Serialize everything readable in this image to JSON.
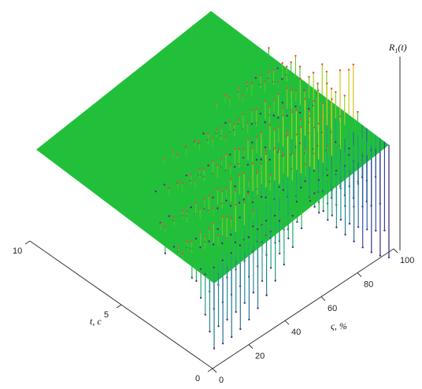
{
  "chart_data": {
    "type": "surface",
    "title": "",
    "zlabel": "R1(t)",
    "zlabel_main": "R",
    "zlabel_sub": "1",
    "zlabel_paren": "(t)",
    "tlabel": "t, c",
    "slabel": "ς, %",
    "t_axis": {
      "range": [
        0,
        10
      ],
      "ticks": [
        0,
        5,
        10
      ]
    },
    "s_axis": {
      "range": [
        0,
        100
      ],
      "ticks": [
        0,
        20,
        40,
        60,
        80,
        100
      ]
    },
    "z_axis": {
      "range": [
        -1,
        1
      ]
    },
    "grid": false,
    "colormap": [
      "#3b0f70",
      "#2c5aa0",
      "#1fa187",
      "#22c03a",
      "#c8d41a",
      "#f39c12",
      "#e74c3c"
    ],
    "description_values": {
      "baseline": 0,
      "peak_value_approx": 1,
      "trough_value_approx": -1,
      "s_sample_step": 5,
      "t_sample_step": 0.25
    }
  },
  "labels": {
    "t_ticks": [
      "0",
      "5",
      "10"
    ],
    "s_ticks": [
      "0",
      "20",
      "40",
      "60",
      "80",
      "100"
    ]
  }
}
